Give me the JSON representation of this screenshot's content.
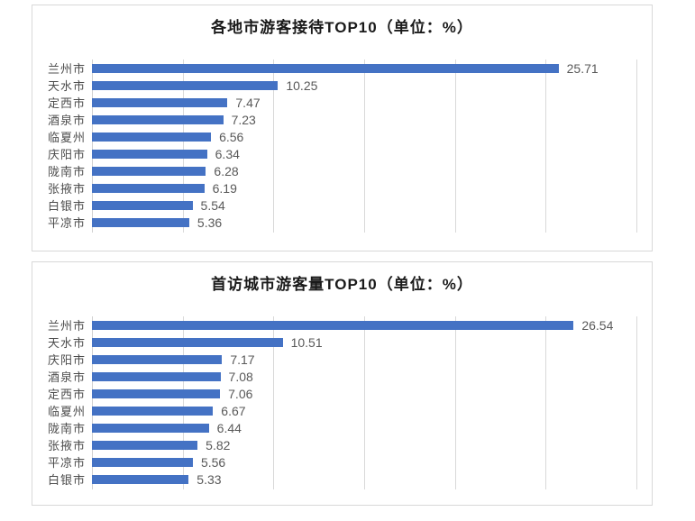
{
  "colors": {
    "bar": "#4472C4",
    "gridline": "#D9D9D9",
    "axis_line": "#CFCFCF",
    "panel_border": "#D8D8D8",
    "category_text": "#4D4D4D",
    "value_text": "#595959",
    "title_text": "#1A1A1A"
  },
  "chart_data": [
    {
      "type": "bar",
      "orientation": "horizontal",
      "title": "各地市游客接待TOP10（单位：%）",
      "categories": [
        "兰州市",
        "天水市",
        "定西市",
        "酒泉市",
        "临夏州",
        "庆阳市",
        "陇南市",
        "张掖市",
        "白银市",
        "平凉市"
      ],
      "values": [
        25.71,
        10.25,
        7.47,
        7.23,
        6.56,
        6.34,
        6.28,
        6.19,
        5.54,
        5.36
      ],
      "xlabel": "",
      "ylabel": "",
      "xlim": [
        0,
        30
      ],
      "grid_step": 5,
      "grid": true,
      "legend": false,
      "value_labels": "end-of-bar"
    },
    {
      "type": "bar",
      "orientation": "horizontal",
      "title": "首访城市游客量TOP10（单位：%）",
      "categories": [
        "兰州市",
        "天水市",
        "庆阳市",
        "酒泉市",
        "定西市",
        "临夏州",
        "陇南市",
        "张掖市",
        "平凉市",
        "白银市"
      ],
      "values": [
        26.54,
        10.51,
        7.17,
        7.08,
        7.06,
        6.67,
        6.44,
        5.82,
        5.56,
        5.33
      ],
      "xlabel": "",
      "ylabel": "",
      "xlim": [
        0,
        30
      ],
      "grid_step": 5,
      "grid": true,
      "legend": false,
      "value_labels": "end-of-bar"
    }
  ]
}
